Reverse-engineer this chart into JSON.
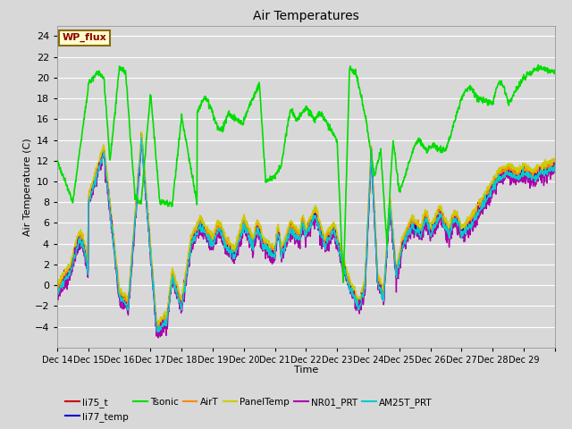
{
  "title": "Air Temperatures",
  "xlabel": "Time",
  "ylabel": "Air Temperature (C)",
  "ylim": [
    -6,
    25
  ],
  "yticks": [
    -4,
    -2,
    0,
    2,
    4,
    6,
    8,
    10,
    12,
    14,
    16,
    18,
    20,
    22,
    24
  ],
  "x_labels": [
    "Dec 14",
    "Dec 15",
    "Dec 16",
    "Dec 17",
    "Dec 18",
    "Dec 19",
    "Dec 20",
    "Dec 21",
    "Dec 22",
    "Dec 23",
    "Dec 24",
    "Dec 25",
    "Dec 26",
    "Dec 27",
    "Dec 28",
    "Dec 29"
  ],
  "background_color": "#d8d8d8",
  "plot_bg_color": "#d8d8d8",
  "grid_color": "#ffffff",
  "annotation_text": "WP_flux",
  "annotation_color": "#8b0000",
  "annotation_bg": "#ffffcc",
  "annotation_border": "#8b6914",
  "series": {
    "li75_t": {
      "color": "#cc0000",
      "lw": 1.0
    },
    "li77_temp": {
      "color": "#0000cc",
      "lw": 1.0
    },
    "Tsonic": {
      "color": "#00dd00",
      "lw": 1.2
    },
    "AirT": {
      "color": "#ff8800",
      "lw": 1.0
    },
    "PanelTemp": {
      "color": "#cccc00",
      "lw": 1.0
    },
    "NR01_PRT": {
      "color": "#aa00aa",
      "lw": 1.0
    },
    "AM25T_PRT": {
      "color": "#00cccc",
      "lw": 1.0
    }
  }
}
